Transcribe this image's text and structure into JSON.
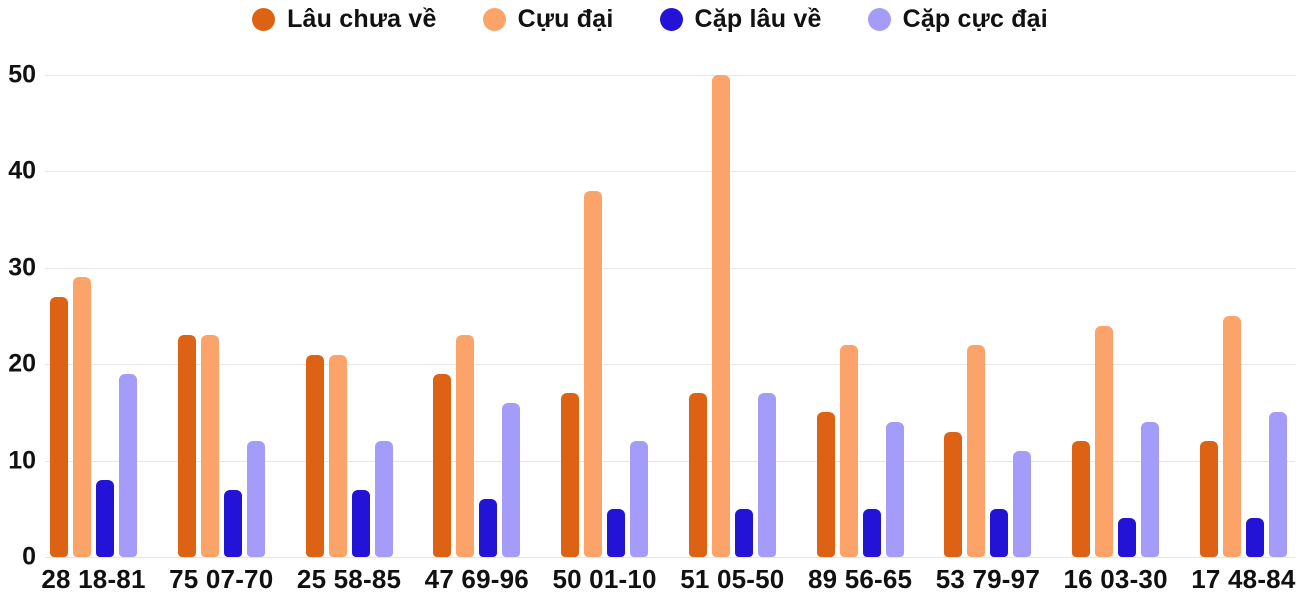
{
  "chart_data": {
    "type": "bar",
    "title": "",
    "xlabel": "",
    "ylabel": "",
    "categories": [
      "28 18-81",
      "75 07-70",
      "25 58-85",
      "47 69-96",
      "50 01-10",
      "51 05-50",
      "89 56-65",
      "53 79-97",
      "16 03-30",
      "17 48-84"
    ],
    "series": [
      {
        "name": "Lâu chưa về",
        "color": "#DD6214",
        "values": [
          27,
          23,
          21,
          19,
          17,
          17,
          15,
          13,
          12,
          12
        ]
      },
      {
        "name": "Cựu đại",
        "color": "#FCA369",
        "values": [
          29,
          23,
          21,
          23,
          38,
          50,
          22,
          22,
          24,
          25
        ]
      },
      {
        "name": "Cặp lâu về",
        "color": "#2213D6",
        "values": [
          8,
          7,
          7,
          6,
          5,
          5,
          5,
          5,
          4,
          4
        ]
      },
      {
        "name": "Cặp cực đại",
        "color": "#A49CF8",
        "values": [
          19,
          12,
          12,
          16,
          12,
          17,
          14,
          11,
          14,
          15
        ]
      }
    ],
    "ylim": [
      0,
      50
    ],
    "yticks": [
      0,
      10,
      20,
      30,
      40,
      50
    ],
    "grid": true,
    "legend_position": "top"
  },
  "colors": {
    "background": "#FFFFFF",
    "grid": "#E7E7E7",
    "text": "#111111"
  }
}
